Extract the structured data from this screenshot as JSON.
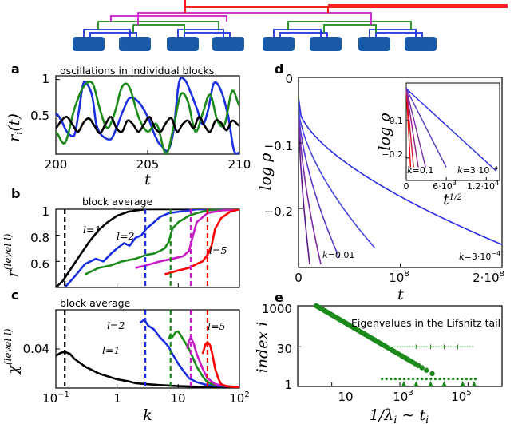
{
  "hierarchy": {
    "levels": 5,
    "block_count": 8,
    "colors": {
      "l1": "#1a2fe0",
      "l2": "#1b8a1b",
      "l3": "#c81cc8",
      "l4": "#ff0000",
      "block": "#1a5aa6"
    }
  },
  "panels": {
    "a": {
      "tag": "a",
      "title": "oscillations in individual blocks",
      "xlabel": "t",
      "ylabel": "r_i(t)"
    },
    "b": {
      "tag": "b",
      "title": "block average",
      "xlabel": "",
      "ylabel": "r^(level l)"
    },
    "c": {
      "tag": "c",
      "title": "block average",
      "xlabel": "k",
      "ylabel": "χ^(level l)"
    },
    "d": {
      "tag": "d",
      "xlabel": "t",
      "ylabel": "log ρ"
    },
    "e": {
      "tag": "e",
      "title": "Eigenvalues in the Lifshitz tail",
      "xlabel": "1/λ_i ~ t_i",
      "ylabel": "index i"
    }
  },
  "chart_data": [
    {
      "id": "a",
      "type": "line",
      "title": "oscillations in individual blocks",
      "xlabel": "t",
      "ylabel": "r_i(t)",
      "xlim": [
        200,
        210
      ],
      "ylim": [
        0,
        1.05
      ],
      "xticks": [
        "200",
        "205",
        "210"
      ],
      "yticks": [
        "0.5",
        "1"
      ],
      "series": [
        {
          "color": "#1a2fe0",
          "x": [
            200,
            200.3,
            200.6,
            201,
            201.2,
            201.5,
            201.8,
            202,
            202.2,
            202.5,
            203,
            203.3,
            203.6,
            204,
            204.5,
            205,
            205.5,
            205.8,
            206.1,
            206.4,
            206.7,
            207,
            207.3,
            207.7,
            208,
            208.3,
            208.6,
            209,
            209.4,
            209.7,
            210
          ],
          "y": [
            0.55,
            0.45,
            0.3,
            0.25,
            0.5,
            0.95,
            0.9,
            0.75,
            0.4,
            0.25,
            0.2,
            0.35,
            0.55,
            0.75,
            0.7,
            0.5,
            0.2,
            0.1,
            0.05,
            0.3,
            0.95,
            1.0,
            0.85,
            0.6,
            0.4,
            0.6,
            0.95,
            0.85,
            0.5,
            0.05,
            0.02
          ]
        },
        {
          "color": "#1b8a1b",
          "x": [
            200,
            200.5,
            201,
            201.5,
            202,
            202.4,
            202.8,
            203.2,
            203.6,
            204,
            204.5,
            205,
            205.5,
            206,
            206.4,
            206.8,
            207.2,
            207.6,
            208,
            208.4,
            208.8,
            209.2,
            209.6,
            210
          ],
          "y": [
            0.3,
            0.15,
            0.6,
            0.9,
            0.95,
            0.6,
            0.35,
            0.55,
            0.9,
            0.9,
            0.5,
            0.3,
            0.4,
            0.0,
            0.35,
            0.8,
            0.7,
            0.3,
            0.55,
            0.8,
            0.45,
            0.4,
            0.85,
            0.65
          ]
        },
        {
          "color": "#000000",
          "x": [
            200,
            200.3,
            200.6,
            200.9,
            201.2,
            201.5,
            201.8,
            202.1,
            202.4,
            202.7,
            203,
            203.3,
            203.6,
            203.9,
            204.2,
            204.5,
            204.8,
            205.1,
            205.4,
            205.7,
            206,
            206.3,
            206.6,
            206.9,
            207.2,
            207.5,
            207.8,
            208.1,
            208.4,
            208.7,
            209,
            209.3,
            209.6,
            210
          ],
          "y": [
            0.35,
            0.45,
            0.5,
            0.4,
            0.3,
            0.42,
            0.48,
            0.38,
            0.28,
            0.4,
            0.5,
            0.35,
            0.3,
            0.45,
            0.4,
            0.3,
            0.4,
            0.5,
            0.35,
            0.3,
            0.42,
            0.48,
            0.3,
            0.4,
            0.45,
            0.35,
            0.5,
            0.38,
            0.3,
            0.45,
            0.42,
            0.32,
            0.45,
            0.38
          ]
        }
      ]
    },
    {
      "id": "b",
      "type": "line",
      "title": "block average",
      "xscale": "log",
      "xlim": [
        0.1,
        100
      ],
      "ylim": [
        0.4,
        1.0
      ],
      "yticks": [
        "0.6",
        "0.8",
        "1"
      ],
      "labels": [
        "l=1",
        "l=2",
        "l=5"
      ],
      "vlines": [
        {
          "x": 0.14,
          "color": "#000000"
        },
        {
          "x": 2.9,
          "color": "#1a2fe0"
        },
        {
          "x": 7.5,
          "color": "#1b8a1b"
        },
        {
          "x": 16,
          "color": "#c81cc8"
        },
        {
          "x": 30,
          "color": "#ff0000"
        }
      ],
      "series": [
        {
          "color": "#000000",
          "x": [
            0.1,
            0.13,
            0.18,
            0.25,
            0.35,
            0.5,
            0.7,
            1,
            1.5,
            2,
            3,
            5,
            10,
            100
          ],
          "y": [
            0.4,
            0.45,
            0.55,
            0.65,
            0.75,
            0.84,
            0.9,
            0.95,
            0.98,
            0.99,
            1.0,
            1.0,
            1.0,
            1.0
          ]
        },
        {
          "color": "#1a2fe0",
          "x": [
            0.14,
            0.2,
            0.3,
            0.45,
            0.6,
            0.8,
            1,
            1.3,
            1.6,
            2,
            2.5,
            3,
            4,
            5,
            7,
            10,
            15,
            20,
            30,
            50,
            100
          ],
          "y": [
            0.4,
            0.48,
            0.58,
            0.62,
            0.6,
            0.66,
            0.7,
            0.74,
            0.72,
            0.78,
            0.8,
            0.85,
            0.9,
            0.94,
            0.97,
            0.98,
            0.99,
            1.0,
            1.0,
            1.0,
            1.0
          ]
        },
        {
          "color": "#1b8a1b",
          "x": [
            0.3,
            0.5,
            0.8,
            1.2,
            2,
            3,
            4,
            5,
            6,
            7,
            8,
            10,
            15,
            20,
            30,
            50,
            100
          ],
          "y": [
            0.5,
            0.55,
            0.57,
            0.6,
            0.62,
            0.65,
            0.66,
            0.68,
            0.7,
            0.75,
            0.85,
            0.9,
            0.95,
            0.97,
            0.99,
            1.0,
            1.0
          ]
        },
        {
          "color": "#c81cc8",
          "x": [
            2,
            3,
            5,
            8,
            12,
            15,
            17,
            20,
            30,
            50,
            100
          ],
          "y": [
            0.55,
            0.57,
            0.6,
            0.62,
            0.64,
            0.68,
            0.78,
            0.9,
            0.97,
            0.99,
            1.0
          ]
        },
        {
          "color": "#ff0000",
          "x": [
            6,
            10,
            15,
            20,
            25,
            30,
            35,
            40,
            50,
            70,
            100
          ],
          "y": [
            0.5,
            0.53,
            0.55,
            0.58,
            0.6,
            0.65,
            0.72,
            0.85,
            0.93,
            0.98,
            1.0
          ]
        }
      ]
    },
    {
      "id": "c",
      "type": "line",
      "title": "block average",
      "xlabel": "k",
      "xscale": "log",
      "xlim": [
        0.1,
        100
      ],
      "ylim": [
        0,
        0.08
      ],
      "xticks": [
        {
          "v": 0.1,
          "label": "10^-1"
        },
        {
          "v": 1,
          "label": "1"
        },
        {
          "v": 10,
          "label": "10"
        },
        {
          "v": 100,
          "label": "10^2"
        }
      ],
      "yticks": [
        "0.04"
      ],
      "labels": [
        "l=1",
        "l=2",
        "l=5"
      ],
      "vlines": [
        {
          "x": 0.14,
          "color": "#000000"
        },
        {
          "x": 2.9,
          "color": "#1a2fe0"
        },
        {
          "x": 7.5,
          "color": "#1b8a1b"
        },
        {
          "x": 16,
          "color": "#c81cc8"
        },
        {
          "x": 30,
          "color": "#ff0000"
        }
      ],
      "series": [
        {
          "color": "#000000",
          "x": [
            0.1,
            0.12,
            0.14,
            0.17,
            0.2,
            0.3,
            0.5,
            0.7,
            1,
            1.5,
            2,
            3,
            5,
            10,
            30,
            100
          ],
          "y": [
            0.033,
            0.036,
            0.037,
            0.035,
            0.03,
            0.022,
            0.015,
            0.012,
            0.009,
            0.007,
            0.005,
            0.004,
            0.003,
            0.002,
            0.001,
            0.001
          ]
        },
        {
          "color": "#1a2fe0",
          "x": [
            2.4,
            2.8,
            3.2,
            4,
            5,
            6,
            7,
            8,
            10,
            12,
            15,
            20,
            30,
            50,
            100
          ],
          "y": [
            0.067,
            0.07,
            0.064,
            0.06,
            0.052,
            0.047,
            0.042,
            0.035,
            0.025,
            0.018,
            0.01,
            0.006,
            0.003,
            0.002,
            0.001
          ]
        },
        {
          "color": "#1b8a1b",
          "x": [
            7,
            7.5,
            8,
            9,
            10,
            12,
            15,
            20,
            25,
            30,
            40,
            60,
            100
          ],
          "y": [
            0.05,
            0.055,
            0.052,
            0.057,
            0.058,
            0.05,
            0.04,
            0.022,
            0.012,
            0.006,
            0.003,
            0.002,
            0.001
          ]
        },
        {
          "color": "#c81cc8",
          "x": [
            14,
            15,
            16,
            18,
            20,
            25,
            30,
            40,
            60,
            100
          ],
          "y": [
            0.04,
            0.048,
            0.052,
            0.045,
            0.035,
            0.02,
            0.01,
            0.004,
            0.002,
            0.001
          ]
        },
        {
          "color": "#ff0000",
          "x": [
            25,
            28,
            30,
            33,
            36,
            40,
            45,
            50,
            60,
            80,
            100
          ],
          "y": [
            0.035,
            0.045,
            0.047,
            0.044,
            0.035,
            0.02,
            0.01,
            0.004,
            0.002,
            0.001,
            0.0005
          ]
        }
      ]
    },
    {
      "id": "d",
      "type": "line",
      "xlabel": "t",
      "ylabel": "log ρ",
      "xlim": [
        0,
        200000000.0
      ],
      "ylim": [
        -0.29,
        0
      ],
      "xticks": [
        {
          "v": 0,
          "label": "0"
        },
        {
          "v": 100000000.0,
          "label": "10^8"
        },
        {
          "v": 200000000.0,
          "label": "2·10^8"
        }
      ],
      "yticks": [
        {
          "v": 0,
          "label": "0"
        },
        {
          "v": -0.1,
          "label": "−0.1"
        },
        {
          "v": -0.2,
          "label": "−0.2"
        }
      ],
      "labels": [
        "k=0.01",
        "k=3·10^-4"
      ],
      "series": [
        {
          "color": "#5b1b8a",
          "tmax": 11000000.0,
          "end": -0.285
        },
        {
          "color": "#7a2aa5",
          "tmax": 22000000.0,
          "end": -0.285
        },
        {
          "color": "#5a37c8",
          "tmax": 40000000.0,
          "end": -0.275
        },
        {
          "color": "#4646e0",
          "tmax": 75000000.0,
          "end": -0.26
        },
        {
          "color": "#2a2ae8",
          "tmax": 200000000.0,
          "end": -0.255
        }
      ],
      "inset": {
        "xlabel": "t^(1/2)",
        "ylabel": "log ρ",
        "xlim": [
          0,
          14000.0
        ],
        "ylim": [
          -0.26,
          0
        ],
        "xticks": [
          {
            "v": 0,
            "label": "0"
          },
          {
            "v": 6000,
            "label": "6·10^3"
          },
          {
            "v": 12000,
            "label": "1.2·10^4"
          }
        ],
        "yticks": [
          {
            "v": -0.1,
            "label": "−0.1"
          },
          {
            "v": -0.2,
            "label": "−0.2"
          }
        ],
        "labels": [
          "k=0.1",
          "k=3·10^-4"
        ],
        "series": [
          {
            "color": "#ff0000",
            "xend": 650,
            "yend": -0.225
          },
          {
            "color": "#c81c3c",
            "xend": 1100,
            "yend": -0.225
          },
          {
            "color": "#9a1b8a",
            "xend": 1800,
            "yend": -0.225
          },
          {
            "color": "#7a2aa5",
            "xend": 2900,
            "yend": -0.225
          },
          {
            "color": "#5a37c8",
            "xend": 6000,
            "yend": -0.225
          },
          {
            "color": "#2a2ae8",
            "xend": 13500,
            "yend": -0.235
          }
        ]
      }
    },
    {
      "id": "e",
      "type": "scatter",
      "title": "Eigenvalues in the Lifshitz tail",
      "xlabel": "1/λ_i ~ t_i",
      "ylabel": "index i",
      "xscale": "log",
      "yscale": "log",
      "xlim": [
        1,
        1000000
      ],
      "ylim": [
        1,
        1000
      ],
      "xticks": [
        {
          "v": 10,
          "label": "10"
        },
        {
          "v": 1000,
          "label": "10^3"
        },
        {
          "v": 100000,
          "label": "10^5"
        }
      ],
      "yticks": [
        {
          "v": 1,
          "label": "1"
        },
        {
          "v": 30,
          "label": "30"
        },
        {
          "v": 1000,
          "label": "1000"
        }
      ],
      "color": "#1b8a1b"
    }
  ]
}
